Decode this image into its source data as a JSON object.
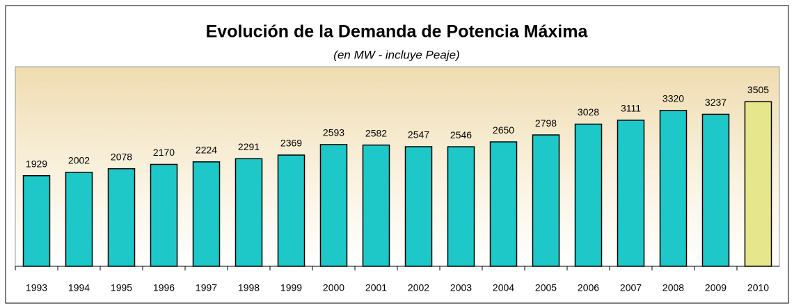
{
  "chart_data": {
    "type": "bar",
    "title": "Evolución de la Demanda de Potencia Máxima",
    "subtitle": "(en MW - incluye Peaje)",
    "categories": [
      "1993",
      "1994",
      "1995",
      "1996",
      "1997",
      "1998",
      "1999",
      "2000",
      "2001",
      "2002",
      "2003",
      "2004",
      "2005",
      "2006",
      "2007",
      "2008",
      "2009",
      "2010"
    ],
    "values": [
      1929,
      2002,
      2078,
      2170,
      2224,
      2291,
      2369,
      2593,
      2582,
      2547,
      2546,
      2650,
      2798,
      3028,
      3111,
      3320,
      3237,
      3505
    ],
    "colors": [
      "#1ec8c8",
      "#1ec8c8",
      "#1ec8c8",
      "#1ec8c8",
      "#1ec8c8",
      "#1ec8c8",
      "#1ec8c8",
      "#1ec8c8",
      "#1ec8c8",
      "#1ec8c8",
      "#1ec8c8",
      "#1ec8c8",
      "#1ec8c8",
      "#1ec8c8",
      "#1ec8c8",
      "#1ec8c8",
      "#1ec8c8",
      "#e6e68c"
    ],
    "ylim": [
      0,
      4250
    ]
  }
}
